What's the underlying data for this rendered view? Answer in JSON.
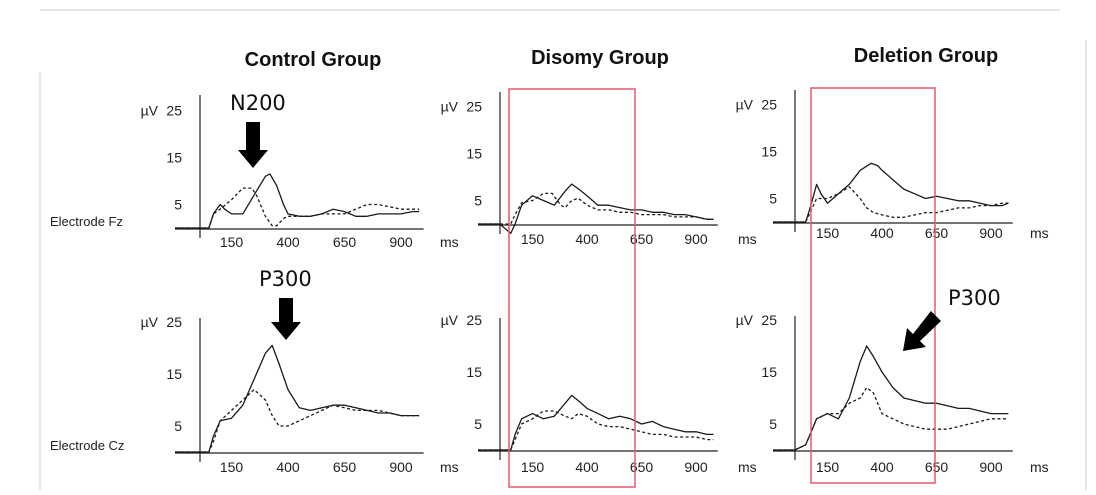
{
  "colors": {
    "trace": "#1a1a1a",
    "axis": "#222222",
    "highlight_box": "#e05a6a",
    "arrow": "#000000",
    "frame": "#cccccc"
  },
  "group_titles": [
    "Control Group",
    "Disomy Group",
    "Deletion Group"
  ],
  "electrode_labels": [
    "Electrode  Fz",
    "Electrode Cz"
  ],
  "annotations": {
    "n200": "N200",
    "p300_control": "P300",
    "p300_deletion": "P300"
  },
  "chart_data": [
    {
      "type": "line",
      "group": "Control Group",
      "electrode": "Fz",
      "y_unit": "µV",
      "x_unit": "ms",
      "y_ticks": [
        5,
        15,
        25
      ],
      "x_ticks": [
        150,
        400,
        650,
        900
      ],
      "xlim": [
        -100,
        1000
      ],
      "ylim": [
        0,
        25
      ],
      "series": [
        {
          "style": "solid",
          "x": [
            -100,
            -50,
            0,
            50,
            70,
            100,
            120,
            150,
            200,
            250,
            300,
            320,
            350,
            380,
            400,
            450,
            500,
            550,
            600,
            650,
            700,
            750,
            800,
            850,
            900,
            950,
            980
          ],
          "y": [
            0,
            0,
            0,
            0,
            3,
            5,
            4,
            3,
            3,
            7,
            11,
            11.5,
            9,
            5,
            3,
            2.5,
            2.5,
            3,
            4,
            3.5,
            2.5,
            2.5,
            3,
            3,
            3,
            3.5,
            3.5
          ]
        },
        {
          "style": "dashed",
          "x": [
            -100,
            -50,
            0,
            50,
            70,
            100,
            150,
            200,
            240,
            260,
            300,
            330,
            350,
            380,
            400,
            450,
            500,
            550,
            600,
            650,
            700,
            750,
            800,
            850,
            900,
            950,
            980
          ],
          "y": [
            0,
            0,
            0,
            0,
            3,
            4,
            6,
            8.5,
            8.5,
            7,
            2.5,
            0.5,
            0.5,
            2,
            2.5,
            2.5,
            2.5,
            3,
            3,
            3,
            4,
            5,
            5,
            4.5,
            4,
            4,
            4
          ]
        }
      ]
    },
    {
      "type": "line",
      "group": "Disomy Group",
      "electrode": "Fz",
      "y_unit": "µV",
      "x_unit": "ms",
      "y_ticks": [
        5,
        15,
        25
      ],
      "x_ticks": [
        150,
        400,
        650,
        900
      ],
      "xlim": [
        -100,
        1000
      ],
      "ylim": [
        0,
        25
      ],
      "series": [
        {
          "style": "solid",
          "x": [
            -100,
            -50,
            0,
            50,
            70,
            100,
            150,
            200,
            250,
            300,
            330,
            360,
            400,
            450,
            500,
            550,
            600,
            650,
            700,
            750,
            800,
            850,
            900,
            950,
            980
          ],
          "y": [
            0,
            0,
            0,
            -2,
            0,
            4,
            6,
            5,
            4,
            7,
            8.5,
            7.5,
            6,
            4,
            4,
            3.5,
            3,
            3,
            2.5,
            2.5,
            2,
            2,
            1.5,
            1,
            1
          ]
        },
        {
          "style": "dashed",
          "x": [
            -100,
            -50,
            0,
            50,
            70,
            100,
            150,
            200,
            240,
            280,
            300,
            330,
            360,
            400,
            450,
            500,
            550,
            600,
            650,
            700,
            750,
            800,
            850,
            900,
            950,
            980
          ],
          "y": [
            0,
            0,
            0,
            0,
            2,
            4.5,
            5,
            6.5,
            6.5,
            4,
            3.5,
            5,
            5.5,
            4,
            3,
            3,
            2.5,
            2.5,
            2,
            2,
            2,
            1.5,
            1.5,
            1.5,
            1,
            1
          ]
        }
      ]
    },
    {
      "type": "line",
      "group": "Deletion Group",
      "electrode": "Fz",
      "y_unit": "µV",
      "x_unit": "ms",
      "y_ticks": [
        5,
        15,
        25
      ],
      "x_ticks": [
        150,
        400,
        650,
        900
      ],
      "xlim": [
        -100,
        1000
      ],
      "ylim": [
        0,
        25
      ],
      "series": [
        {
          "style": "solid",
          "x": [
            -100,
            -50,
            0,
            50,
            70,
            100,
            120,
            150,
            200,
            250,
            300,
            350,
            380,
            400,
            450,
            500,
            550,
            600,
            650,
            700,
            750,
            800,
            850,
            900,
            950,
            980
          ],
          "y": [
            0,
            0,
            0,
            0,
            3,
            8,
            6,
            4,
            6,
            8,
            11,
            12.5,
            12,
            11,
            9,
            7,
            6,
            5,
            5.5,
            5,
            4.5,
            4.5,
            4,
            3.5,
            3.5,
            4
          ]
        },
        {
          "style": "dashed",
          "x": [
            -100,
            -50,
            0,
            50,
            70,
            100,
            150,
            200,
            250,
            300,
            330,
            360,
            400,
            450,
            500,
            550,
            600,
            650,
            700,
            750,
            800,
            850,
            900,
            950,
            980
          ],
          "y": [
            0,
            0,
            0,
            0,
            2,
            5,
            5,
            6,
            7.5,
            5,
            3,
            2,
            1.5,
            1,
            1,
            1.5,
            2,
            2,
            2.5,
            3,
            3,
            3.5,
            3.5,
            4,
            4
          ]
        }
      ]
    },
    {
      "type": "line",
      "group": "Control Group",
      "electrode": "Cz",
      "y_unit": "µV",
      "x_unit": "ms",
      "y_ticks": [
        5,
        15,
        25
      ],
      "x_ticks": [
        150,
        400,
        650,
        900
      ],
      "xlim": [
        -100,
        1000
      ],
      "ylim": [
        0,
        25
      ],
      "series": [
        {
          "style": "solid",
          "x": [
            -100,
            -50,
            0,
            50,
            70,
            100,
            150,
            200,
            250,
            300,
            330,
            360,
            400,
            450,
            500,
            550,
            600,
            650,
            700,
            750,
            800,
            850,
            900,
            950,
            980
          ],
          "y": [
            0,
            0,
            0,
            0,
            3,
            6,
            6.5,
            9,
            14,
            19,
            20.5,
            17,
            12,
            8.5,
            8,
            8.5,
            9,
            9,
            8.5,
            8,
            7.5,
            7.5,
            7,
            7,
            7
          ]
        },
        {
          "style": "dashed",
          "x": [
            -100,
            -50,
            0,
            50,
            70,
            100,
            150,
            200,
            250,
            300,
            330,
            360,
            400,
            450,
            500,
            550,
            600,
            650,
            700,
            750,
            800,
            850,
            900,
            950,
            980
          ],
          "y": [
            0,
            0,
            0,
            0,
            2,
            6,
            8,
            10,
            12,
            10,
            7,
            5,
            5,
            6,
            7,
            8,
            9,
            8.5,
            8,
            8,
            8,
            7.5,
            7,
            7,
            7
          ]
        }
      ]
    },
    {
      "type": "line",
      "group": "Disomy Group",
      "electrode": "Cz",
      "y_unit": "µV",
      "x_unit": "ms",
      "y_ticks": [
        5,
        15,
        25
      ],
      "x_ticks": [
        150,
        400,
        650,
        900
      ],
      "xlim": [
        -100,
        1000
      ],
      "ylim": [
        0,
        25
      ],
      "series": [
        {
          "style": "solid",
          "x": [
            -100,
            -50,
            0,
            50,
            70,
            100,
            150,
            200,
            250,
            300,
            330,
            360,
            400,
            450,
            500,
            550,
            600,
            650,
            700,
            750,
            800,
            850,
            900,
            950,
            980
          ],
          "y": [
            0,
            0,
            0,
            0,
            3,
            6,
            7,
            6,
            6.5,
            9,
            10.5,
            9.5,
            8,
            7,
            6,
            6.5,
            6,
            5,
            5.5,
            4.5,
            4,
            3.5,
            3.5,
            3,
            3
          ]
        },
        {
          "style": "dashed",
          "x": [
            -100,
            -50,
            0,
            50,
            70,
            100,
            150,
            200,
            250,
            300,
            330,
            360,
            400,
            450,
            500,
            550,
            600,
            650,
            700,
            750,
            800,
            850,
            900,
            950,
            980
          ],
          "y": [
            0,
            0,
            0,
            0,
            2,
            5,
            6,
            7.5,
            7.5,
            6.5,
            6,
            7,
            6.5,
            5,
            4.5,
            4.5,
            4,
            3.5,
            3,
            3,
            2.5,
            2.5,
            2.5,
            2,
            2
          ]
        }
      ]
    },
    {
      "type": "line",
      "group": "Deletion Group",
      "electrode": "Cz",
      "y_unit": "µV",
      "x_unit": "ms",
      "y_ticks": [
        5,
        15,
        25
      ],
      "x_ticks": [
        150,
        400,
        650,
        900
      ],
      "xlim": [
        -100,
        1000
      ],
      "ylim": [
        0,
        25
      ],
      "series": [
        {
          "style": "solid",
          "x": [
            -100,
            -50,
            0,
            50,
            70,
            100,
            150,
            200,
            250,
            300,
            330,
            360,
            400,
            450,
            500,
            550,
            600,
            650,
            700,
            750,
            800,
            850,
            900,
            950,
            980
          ],
          "y": [
            0,
            0,
            0,
            1,
            3,
            6,
            7,
            6,
            10,
            17,
            20,
            18,
            15,
            12,
            10,
            9.5,
            9,
            9,
            8.5,
            8,
            8,
            7.5,
            7,
            7,
            7
          ]
        },
        {
          "style": "dashed",
          "x": [
            -100,
            -50,
            0,
            50,
            70,
            100,
            150,
            200,
            250,
            300,
            330,
            360,
            400,
            450,
            500,
            550,
            600,
            650,
            700,
            750,
            800,
            850,
            900,
            950,
            980
          ],
          "y": [
            0,
            0,
            0,
            1,
            3,
            6,
            7,
            7,
            9,
            10,
            12,
            11,
            7,
            6,
            5,
            4.5,
            4,
            4,
            4,
            4.5,
            5,
            5.5,
            6,
            6,
            6
          ]
        }
      ]
    }
  ]
}
